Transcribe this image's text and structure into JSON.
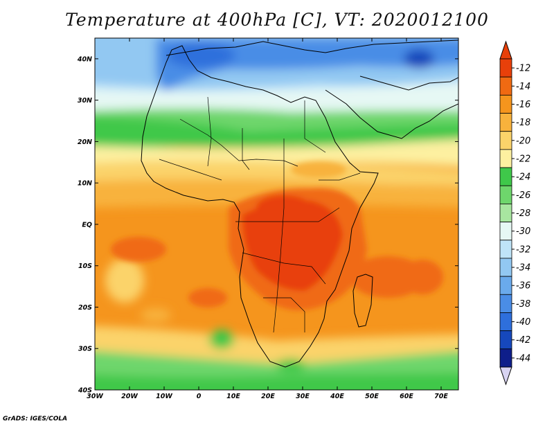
{
  "title": "Temperature at 400hPa [C], VT: 2020012100",
  "footer": "GrADS: IGES/COLA",
  "map": {
    "region": "Africa and surrounding oceans",
    "lon_range": [
      -30,
      75
    ],
    "lat_range": [
      -40,
      45
    ],
    "x_ticks": [
      "30W",
      "20W",
      "10W",
      "0",
      "10E",
      "20E",
      "30E",
      "40E",
      "50E",
      "60E",
      "70E"
    ],
    "y_ticks": [
      "40N",
      "30N",
      "20N",
      "10N",
      "EQ",
      "10S",
      "20S",
      "30S",
      "40S"
    ]
  },
  "colorbar": {
    "labels": [
      "-12",
      "-14",
      "-16",
      "-18",
      "-20",
      "-22",
      "-24",
      "-26",
      "-28",
      "-30",
      "-32",
      "-34",
      "-36",
      "-38",
      "-40",
      "-42",
      "-44"
    ],
    "colors": [
      "#e8400a",
      "#f06a12",
      "#f5951d",
      "#f8b23c",
      "#fbd36a",
      "#fdf0a0",
      "#3fc84a",
      "#6ed66c",
      "#a8e6a0",
      "#e6f8f4",
      "#bfe4f8",
      "#92c8f2",
      "#6aaaec",
      "#4a8de6",
      "#2e6fdc",
      "#1648bc",
      "#0e1e8a"
    ],
    "top_arrow_color": "#e8400a",
    "bottom_arrow_color": "#d8d4f2"
  }
}
